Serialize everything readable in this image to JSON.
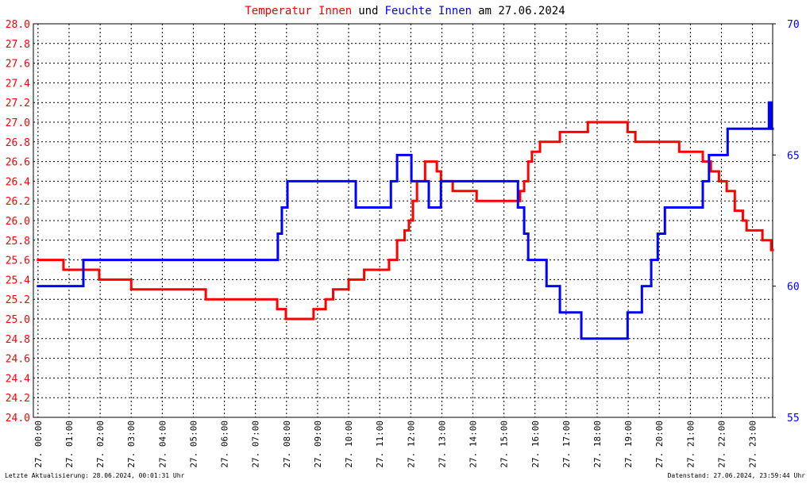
{
  "chart_data": {
    "type": "step-line",
    "title": [
      {
        "text": "Temperatur Innen",
        "color": "#ff0000"
      },
      {
        "text": "und",
        "color": "#000000"
      },
      {
        "text": "Feuchte Innen",
        "color": "#0000ff"
      },
      {
        "text": "am 27.06.2024",
        "color": "#000000"
      }
    ],
    "footer_left": "Letzte Aktualisierung: 28.06.2024, 00:01:31 Uhr",
    "footer_right": "Datenstand: 27.06.2024, 23:59:44 Uhr",
    "xlim": [
      -0.15,
      23.65
    ],
    "xticks": [
      {
        "value": 0,
        "label": "27. 00:00"
      },
      {
        "value": 1,
        "label": "27. 01:00"
      },
      {
        "value": 2,
        "label": "27. 02:00"
      },
      {
        "value": 3,
        "label": "27. 03:00"
      },
      {
        "value": 4,
        "label": "27. 04:00"
      },
      {
        "value": 5,
        "label": "27. 05:00"
      },
      {
        "value": 6,
        "label": "27. 06:00"
      },
      {
        "value": 7,
        "label": "27. 07:00"
      },
      {
        "value": 8,
        "label": "27. 08:00"
      },
      {
        "value": 9,
        "label": "27. 09:00"
      },
      {
        "value": 10,
        "label": "27. 10:00"
      },
      {
        "value": 11,
        "label": "27. 11:00"
      },
      {
        "value": 12,
        "label": "27. 12:00"
      },
      {
        "value": 13,
        "label": "27. 13:00"
      },
      {
        "value": 14,
        "label": "27. 14:00"
      },
      {
        "value": 15,
        "label": "27. 15:00"
      },
      {
        "value": 16,
        "label": "27. 16:00"
      },
      {
        "value": 17,
        "label": "27. 17:00"
      },
      {
        "value": 18,
        "label": "27. 18:00"
      },
      {
        "value": 19,
        "label": "27. 19:00"
      },
      {
        "value": 20,
        "label": "27. 20:00"
      },
      {
        "value": 21,
        "label": "27. 21:00"
      },
      {
        "value": 22,
        "label": "27. 22:00"
      },
      {
        "value": 23,
        "label": "27. 23:00"
      }
    ],
    "ylim": [
      24,
      28
    ],
    "yticks": [
      {
        "value": 24,
        "label": "24.0"
      },
      24.2,
      24.4,
      24.6,
      24.8,
      {
        "value": 25,
        "label": "25.0"
      },
      25.2,
      25.4,
      25.6,
      25.8,
      {
        "value": 26,
        "label": "26.0"
      },
      26.2,
      26.4,
      26.6,
      26.8,
      {
        "value": 27,
        "label": "27.0"
      },
      27.2,
      27.4,
      27.6,
      27.8,
      {
        "value": 28,
        "label": "28.0"
      }
    ],
    "y2lim": [
      55,
      70
    ],
    "y2ticks": [
      55,
      60,
      65,
      70
    ],
    "grid": true,
    "series": [
      {
        "name": "Temperatur Innen",
        "color": "#ff0000",
        "axis": "y",
        "x": [
          0,
          0.82,
          1.97,
          3.0,
          5.4,
          7.7,
          7.98,
          8.87,
          9.26,
          9.5,
          10.0,
          10.5,
          11.3,
          11.56,
          11.8,
          11.94,
          12.07,
          12.2,
          12.46,
          12.84,
          12.97,
          13.35,
          14.12,
          15.52,
          15.65,
          15.78,
          15.9,
          16.16,
          16.8,
          17.7,
          18.98,
          19.23,
          20.64,
          21.4,
          21.66,
          21.92,
          22.17,
          22.43,
          22.69,
          22.81,
          23.32,
          23.6
        ],
        "values": [
          25.6,
          25.5,
          25.4,
          25.3,
          25.2,
          25.1,
          25.0,
          25.1,
          25.2,
          25.3,
          25.4,
          25.5,
          25.6,
          25.8,
          25.9,
          26.0,
          26.2,
          26.4,
          26.6,
          26.5,
          26.4,
          26.3,
          26.2,
          26.3,
          26.4,
          26.6,
          26.7,
          26.8,
          26.9,
          27.0,
          26.9,
          26.8,
          26.7,
          26.6,
          26.5,
          26.4,
          26.3,
          26.1,
          26.0,
          25.9,
          25.8,
          25.7
        ]
      },
      {
        "name": "Feuchte Innen",
        "color": "#0000ff",
        "axis": "y2",
        "x": [
          0,
          1.46,
          7.72,
          7.85,
          8.03,
          10.23,
          11.36,
          11.56,
          12.02,
          12.58,
          12.97,
          15.45,
          15.65,
          15.78,
          16.37,
          16.8,
          17.49,
          18.98,
          19.44,
          19.74,
          19.95,
          20.18,
          21.4,
          21.6,
          22.2,
          23.53,
          23.6
        ],
        "values": [
          60,
          61,
          62,
          63,
          64,
          63,
          64,
          65,
          64,
          63,
          64,
          63,
          62,
          61,
          60,
          59,
          58,
          59,
          60,
          61,
          62,
          63,
          64,
          65,
          66,
          67,
          66
        ]
      }
    ]
  }
}
